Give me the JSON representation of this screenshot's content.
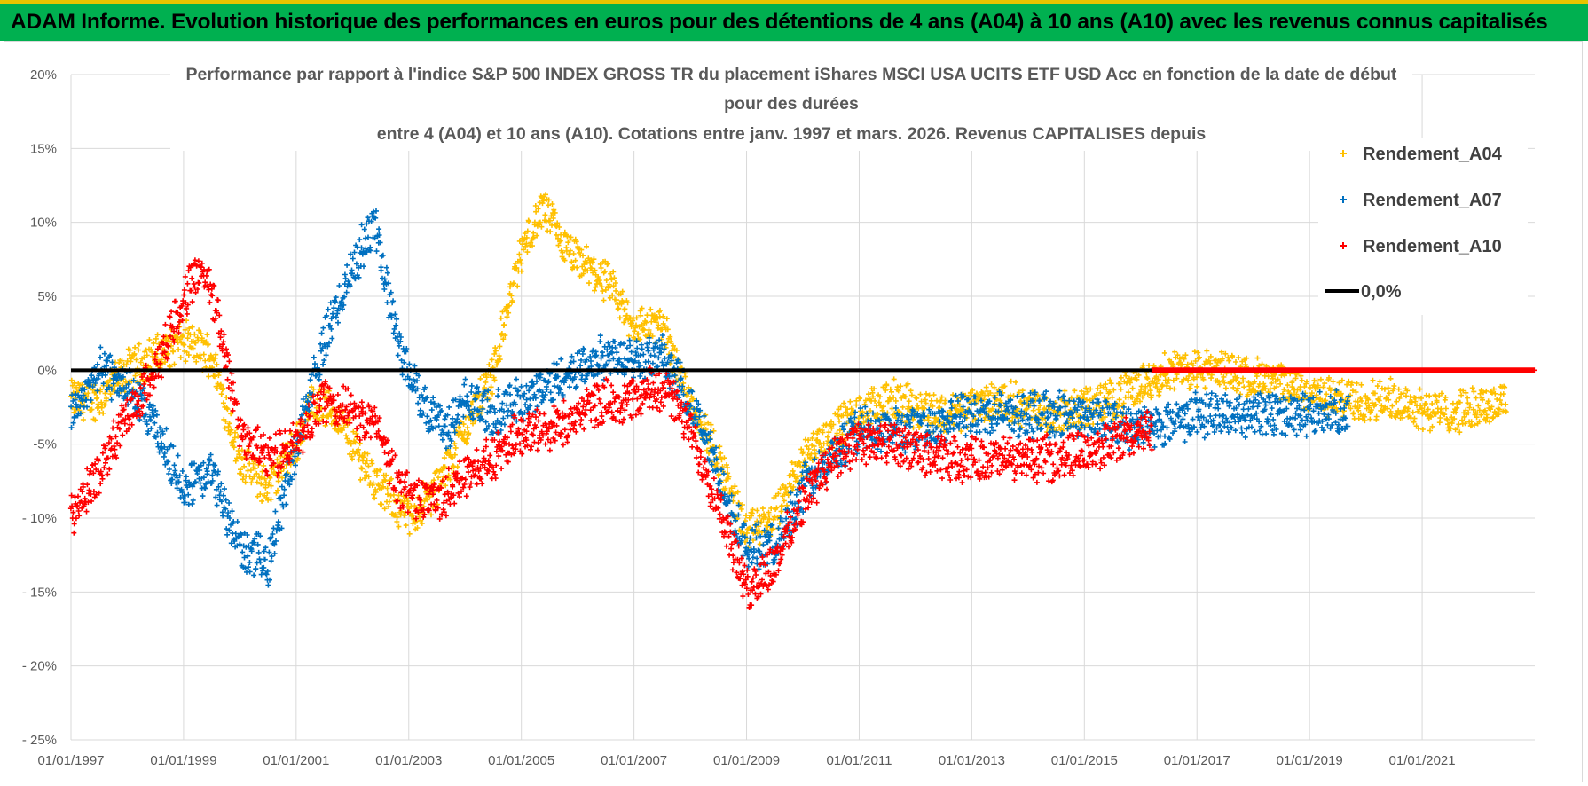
{
  "header": {
    "title": "ADAM Informe. Evolution historique des performances en euros pour des détentions de 4 ans (A04) à 10 ans (A10) avec les revenus connus capitalisés"
  },
  "colors": {
    "header_bg": "#00b050",
    "a04": "#ffc000",
    "a07": "#0070c0",
    "a10": "#ff0000",
    "zero": "#000000",
    "grid": "#d9d9d9"
  },
  "chart_data": {
    "type": "scatter",
    "title_lines": [
      "Performance par rapport à l'indice S&P 500 INDEX GROSS TR  du placement iShares MSCI USA UCITS ETF USD Acc en fonction de la date de début",
      "pour des durées",
      "entre 4 (A04) et 10 ans (A10). Cotations entre janv. 1997 et mars. 2026. Revenus CAPITALISES depuis"
    ],
    "x_ticks": [
      "01/01/1997",
      "01/01/1999",
      "01/01/2001",
      "01/01/2003",
      "01/01/2005",
      "01/01/2007",
      "01/01/2009",
      "01/01/2011",
      "01/01/2013",
      "01/01/2015",
      "01/01/2017",
      "01/01/2019",
      "01/01/2021"
    ],
    "xlim": [
      1997.0,
      2023.0
    ],
    "ylim": [
      -0.25,
      0.2
    ],
    "y_ticks": [
      -0.25,
      -0.2,
      -0.15,
      -0.1,
      -0.05,
      0.0,
      0.05,
      0.1,
      0.15,
      0.2
    ],
    "y_tick_labels": [
      "- 25%",
      "- 20%",
      "- 15%",
      "- 10%",
      "-5%",
      "0%",
      "5%",
      "10%",
      "15%",
      "20%"
    ],
    "legend": [
      "Rendement_A04",
      "Rendement_A07",
      "Rendement_A10",
      "0,0%"
    ],
    "series": [
      {
        "name": "Rendement_A04",
        "x_range": [
          1997.0,
          2022.5
        ],
        "anchors": [
          [
            1997.0,
            -0.02
          ],
          [
            1997.5,
            -0.02
          ],
          [
            1998.0,
            0.0
          ],
          [
            1998.5,
            0.01
          ],
          [
            1999.0,
            0.02
          ],
          [
            1999.5,
            0.01
          ],
          [
            2000.0,
            -0.06
          ],
          [
            2000.5,
            -0.08
          ],
          [
            2001.0,
            -0.05
          ],
          [
            2001.3,
            -0.02
          ],
          [
            2001.7,
            -0.03
          ],
          [
            2002.0,
            -0.05
          ],
          [
            2002.5,
            -0.08
          ],
          [
            2003.0,
            -0.1
          ],
          [
            2003.5,
            -0.08
          ],
          [
            2004.0,
            -0.04
          ],
          [
            2004.5,
            0.0
          ],
          [
            2005.0,
            0.08
          ],
          [
            2005.4,
            0.11
          ],
          [
            2005.8,
            0.08
          ],
          [
            2006.5,
            0.06
          ],
          [
            2007.0,
            0.03
          ],
          [
            2007.5,
            0.03
          ],
          [
            2008.0,
            -0.02
          ],
          [
            2008.5,
            -0.06
          ],
          [
            2009.0,
            -0.11
          ],
          [
            2009.5,
            -0.1
          ],
          [
            2010.0,
            -0.06
          ],
          [
            2010.5,
            -0.04
          ],
          [
            2011.0,
            -0.03
          ],
          [
            2011.5,
            -0.02
          ],
          [
            2012.5,
            -0.03
          ],
          [
            2013.5,
            -0.02
          ],
          [
            2014.5,
            -0.03
          ],
          [
            2015.5,
            -0.02
          ],
          [
            2016.0,
            -0.01
          ],
          [
            2016.5,
            0.0
          ],
          [
            2017.5,
            0.0
          ],
          [
            2018.5,
            -0.01
          ],
          [
            2019.5,
            -0.02
          ],
          [
            2020.5,
            -0.02
          ],
          [
            2021.5,
            -0.03
          ],
          [
            2022.5,
            -0.02
          ]
        ],
        "spread": 0.012
      },
      {
        "name": "Rendement_A07",
        "x_range": [
          1997.0,
          2019.7
        ],
        "anchors": [
          [
            1997.0,
            -0.03
          ],
          [
            1997.5,
            0.0
          ],
          [
            1998.0,
            -0.01
          ],
          [
            1998.5,
            -0.04
          ],
          [
            1999.0,
            -0.08
          ],
          [
            1999.5,
            -0.07
          ],
          [
            2000.0,
            -0.12
          ],
          [
            2000.5,
            -0.13
          ],
          [
            2001.0,
            -0.05
          ],
          [
            2001.5,
            0.02
          ],
          [
            2002.0,
            0.07
          ],
          [
            2002.4,
            0.1
          ],
          [
            2002.8,
            0.02
          ],
          [
            2003.2,
            -0.02
          ],
          [
            2003.7,
            -0.04
          ],
          [
            2004.0,
            -0.02
          ],
          [
            2004.5,
            -0.03
          ],
          [
            2005.0,
            -0.02
          ],
          [
            2005.5,
            -0.01
          ],
          [
            2006.0,
            0.0
          ],
          [
            2006.5,
            0.01
          ],
          [
            2007.0,
            0.01
          ],
          [
            2007.5,
            0.01
          ],
          [
            2008.0,
            -0.02
          ],
          [
            2008.5,
            -0.07
          ],
          [
            2009.0,
            -0.12
          ],
          [
            2009.5,
            -0.12
          ],
          [
            2010.0,
            -0.08
          ],
          [
            2010.5,
            -0.06
          ],
          [
            2011.0,
            -0.04
          ],
          [
            2012.0,
            -0.04
          ],
          [
            2013.0,
            -0.03
          ],
          [
            2014.0,
            -0.03
          ],
          [
            2015.0,
            -0.03
          ],
          [
            2016.0,
            -0.04
          ],
          [
            2017.0,
            -0.03
          ],
          [
            2018.0,
            -0.03
          ],
          [
            2019.0,
            -0.03
          ],
          [
            2019.7,
            -0.03
          ]
        ],
        "spread": 0.013
      },
      {
        "name": "Rendement_A10",
        "x_range": [
          1997.0,
          2016.2
        ],
        "anchors": [
          [
            1997.0,
            -0.1
          ],
          [
            1997.5,
            -0.07
          ],
          [
            1998.0,
            -0.03
          ],
          [
            1998.5,
            0.0
          ],
          [
            1999.0,
            0.05
          ],
          [
            1999.3,
            0.07
          ],
          [
            1999.6,
            0.04
          ],
          [
            2000.0,
            -0.04
          ],
          [
            2000.5,
            -0.06
          ],
          [
            2001.0,
            -0.05
          ],
          [
            2001.5,
            -0.02
          ],
          [
            2002.0,
            -0.03
          ],
          [
            2002.5,
            -0.04
          ],
          [
            2002.8,
            -0.08
          ],
          [
            2003.5,
            -0.09
          ],
          [
            2004.0,
            -0.07
          ],
          [
            2004.5,
            -0.06
          ],
          [
            2005.0,
            -0.04
          ],
          [
            2005.5,
            -0.04
          ],
          [
            2006.0,
            -0.03
          ],
          [
            2006.5,
            -0.02
          ],
          [
            2007.0,
            -0.02
          ],
          [
            2007.5,
            -0.01
          ],
          [
            2008.0,
            -0.04
          ],
          [
            2008.5,
            -0.09
          ],
          [
            2009.0,
            -0.15
          ],
          [
            2009.5,
            -0.13
          ],
          [
            2010.0,
            -0.09
          ],
          [
            2010.5,
            -0.06
          ],
          [
            2011.0,
            -0.05
          ],
          [
            2011.5,
            -0.05
          ],
          [
            2012.5,
            -0.06
          ],
          [
            2013.5,
            -0.06
          ],
          [
            2014.5,
            -0.06
          ],
          [
            2015.5,
            -0.05
          ],
          [
            2016.2,
            -0.04
          ]
        ],
        "spread": 0.013
      },
      {
        "name": "Rendement_A10_zero_segment",
        "x_range": [
          2016.2,
          2023.0
        ],
        "anchors": [
          [
            2016.2,
            0.0
          ],
          [
            2023.0,
            0.0
          ]
        ],
        "spread": 0.0
      }
    ],
    "reference_line": {
      "name": "0,0%",
      "y": 0.0
    }
  }
}
